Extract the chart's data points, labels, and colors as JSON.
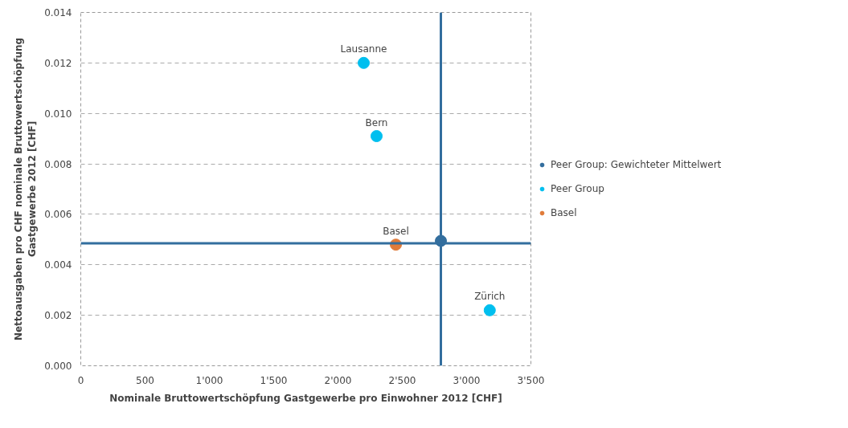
{
  "chart_data": {
    "type": "scatter",
    "xlabel": "Nominale Bruttowertschöpfung Gastgewerbe pro Einwohner 2012 [CHF]",
    "ylabel": "Nettoausgaben pro CHF nominale Bruttowertschöpfung\nGastgewerbe 2012 [CHF]",
    "xlim": [
      0,
      3500
    ],
    "xticks": [
      0,
      500,
      {
        "value": 1000,
        "label": "1'000"
      },
      {
        "value": 1500,
        "label": "1'500"
      },
      {
        "value": 2000,
        "label": "2'000"
      },
      {
        "value": 2500,
        "label": "2'500"
      },
      {
        "value": 3000,
        "label": "3'000"
      },
      {
        "value": 3500,
        "label": "3'500"
      }
    ],
    "ylim": [
      0,
      0.014
    ],
    "yticks": [
      {
        "value": 0,
        "label": "0.000"
      },
      {
        "value": 0.002,
        "label": "0.002"
      },
      {
        "value": 0.004,
        "label": "0.004"
      },
      {
        "value": 0.006,
        "label": "0.006"
      },
      {
        "value": 0.008,
        "label": "0.008"
      },
      {
        "value": 0.01,
        "label": "0.010"
      },
      {
        "value": 0.012,
        "label": "0.012"
      },
      {
        "value": 0.014,
        "label": "0.014"
      }
    ],
    "series": [
      {
        "name": "Peer Group: Gewichteter Mittelwert",
        "color": "#336e9e",
        "x": [
          2800
        ],
        "values": [
          0.00495
        ]
      },
      {
        "name": "Peer Group",
        "color": "#00bfef",
        "x": [
          2200,
          2300,
          3180
        ],
        "values": [
          0.012,
          0.0091,
          0.0022
        ]
      },
      {
        "name": "Basel",
        "color": "#e07b39",
        "x": [
          2450
        ],
        "values": [
          0.0048
        ]
      }
    ],
    "ref_lines": [
      {
        "axis": "x",
        "value": 2800,
        "color": "#336e9e"
      },
      {
        "axis": "y",
        "value": 0.00485,
        "color": "#336e9e"
      }
    ],
    "annotations": [
      {
        "text": "Lausanne",
        "x": 2200,
        "y": 0.012
      },
      {
        "text": "Bern",
        "x": 2300,
        "y": 0.0091
      },
      {
        "text": "Basel",
        "x": 2450,
        "y": 0.0048
      },
      {
        "text": "Zürich",
        "x": 3180,
        "y": 0.0022
      }
    ],
    "grid": "y",
    "legend": "right",
    "marker": "circle"
  }
}
